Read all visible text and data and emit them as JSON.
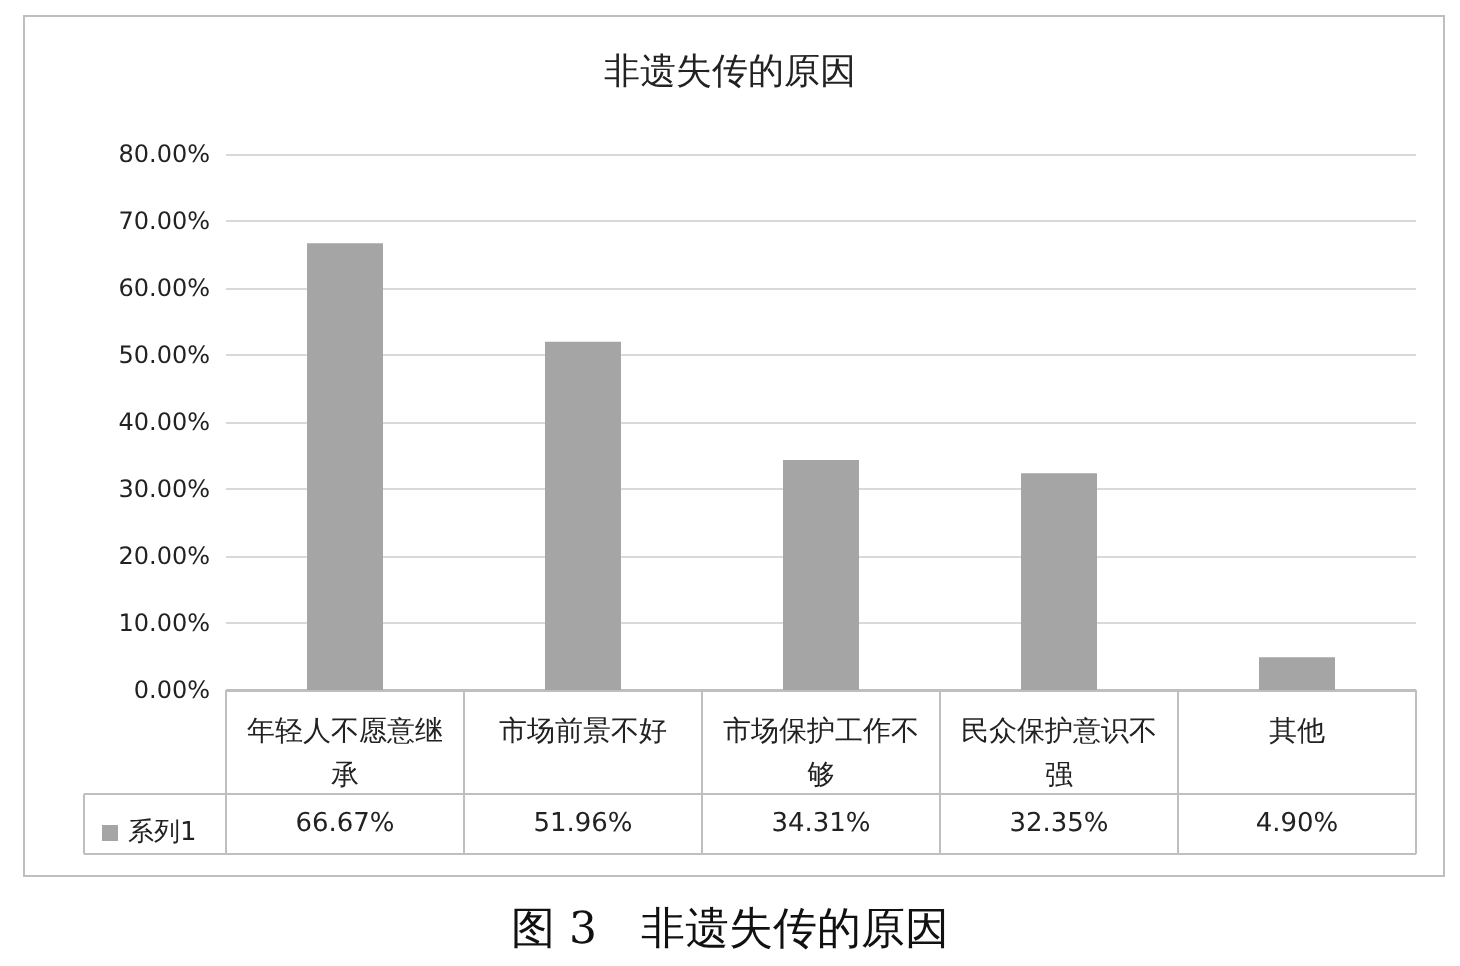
{
  "chart_data": {
    "type": "bar",
    "title": "非遗失传的原因",
    "categories": [
      "年轻人不愿意继承",
      "市场前景不好",
      "市场保护工作不够",
      "民众保护意识不强",
      "其他"
    ],
    "series": [
      {
        "name": "系列1",
        "color": "#a5a5a5",
        "values": [
          66.67,
          51.96,
          34.31,
          32.35,
          4.9
        ],
        "value_labels": [
          "66.67%",
          "51.96%",
          "34.31%",
          "32.35%",
          "4.90%"
        ]
      }
    ],
    "ylim": [
      0,
      80
    ],
    "yticks": [
      {
        "value": 0,
        "label": "0.00%"
      },
      {
        "value": 10,
        "label": "10.00%"
      },
      {
        "value": 20,
        "label": "20.00%"
      },
      {
        "value": 30,
        "label": "30.00%"
      },
      {
        "value": 40,
        "label": "40.00%"
      },
      {
        "value": 50,
        "label": "50.00%"
      },
      {
        "value": 60,
        "label": "60.00%"
      },
      {
        "value": 70,
        "label": "70.00%"
      },
      {
        "value": 80,
        "label": "80.00%"
      }
    ],
    "grid": "y",
    "legend": "bottom left",
    "annotations": [
      "图 3　非遗失传的原因"
    ]
  }
}
